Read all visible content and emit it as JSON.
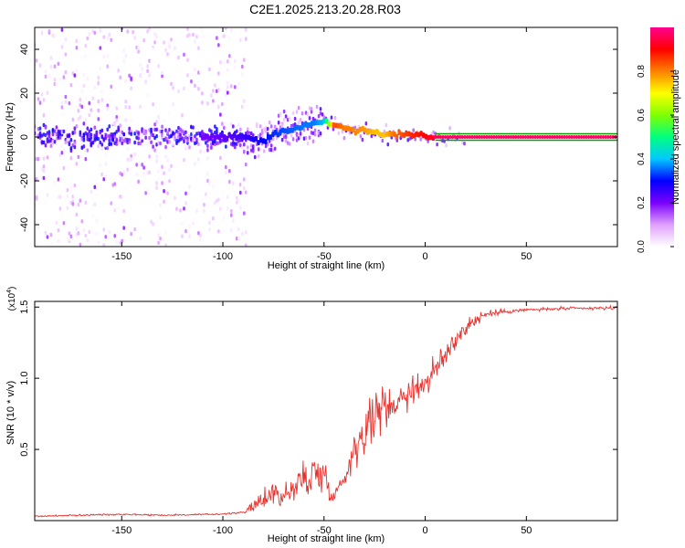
{
  "figure": {
    "title": "C2E1.2025.213.20.28.R03"
  },
  "colors": {
    "snr_line": "#e8322e",
    "ridge_line": "#00a000",
    "frame": "#000000"
  },
  "chart_data": [
    {
      "type": "heatmap",
      "xlabel": "Height of straight line (km)",
      "ylabel": "Frequency (Hz)",
      "xlim": [
        -193,
        95
      ],
      "ylim": [
        -50,
        50
      ],
      "xticks": [
        -150,
        -100,
        -50,
        0,
        50
      ],
      "yticks": [
        -40,
        -20,
        0,
        20,
        40
      ],
      "colorbar": {
        "label": "Normalized spectral amplitude",
        "range": [
          0,
          1
        ],
        "ticks": [
          "0.0",
          "0.2",
          "0.4",
          "0.6",
          "0.8"
        ],
        "tick_values": [
          0.0,
          0.2,
          0.4,
          0.6,
          0.8
        ],
        "colormap": [
          "#ffffff",
          "#e0a0ff",
          "#7a00ff",
          "#0000ff",
          "#00c8ff",
          "#00ff80",
          "#80ff00",
          "#ffff00",
          "#ff8000",
          "#ff0000",
          "#ff0090"
        ]
      },
      "noise_segments": [
        {
          "x_from": -193,
          "x_to": -88,
          "density": "dense",
          "freq_spread": 50
        },
        {
          "x_from": -88,
          "x_to": -50,
          "density": "moderate",
          "freq_spread": 12
        },
        {
          "x_from": -50,
          "x_to": 20,
          "density": "sparse",
          "freq_spread": 6
        }
      ],
      "ridge": {
        "x": [
          -110,
          -100,
          -90,
          -80,
          -75,
          -70,
          -65,
          -60,
          -55,
          -50,
          -45,
          -40,
          -35,
          -30,
          -25,
          -20,
          -15,
          -10,
          -5,
          0,
          5,
          10,
          95
        ],
        "y": [
          0,
          0,
          0,
          -2,
          1,
          3,
          4,
          5,
          6,
          7,
          5,
          4,
          3,
          3,
          2,
          1,
          1,
          1,
          1,
          0,
          0,
          0,
          0
        ],
        "amplitude": [
          0.2,
          0.22,
          0.25,
          0.3,
          0.32,
          0.34,
          0.35,
          0.36,
          0.36,
          0.4,
          0.85,
          0.8,
          0.8,
          0.78,
          0.75,
          0.75,
          0.82,
          0.85,
          0.88,
          0.9,
          0.95,
          0.97,
          0.97
        ]
      }
    },
    {
      "type": "line",
      "xlabel": "Height of straight line (km)",
      "ylabel": "SNR (10 * v/v)",
      "y_multiplier": "(x10",
      "y_multiplier_exp": "4",
      "xlim": [
        -193,
        95
      ],
      "ylim": [
        0,
        15400
      ],
      "xticks": [
        -150,
        -100,
        -50,
        0,
        50
      ],
      "yticks": [
        5000,
        10000,
        15000
      ],
      "ytick_labels": [
        "0.5",
        "1.0",
        "1.5"
      ],
      "series": [
        {
          "x": [
            -193,
            -170,
            -150,
            -130,
            -110,
            -95,
            -90,
            -85,
            -80,
            -75,
            -70,
            -65,
            -60,
            -55,
            -50,
            -45,
            -40,
            -35,
            -30,
            -25,
            -20,
            -15,
            -10,
            -5,
            0,
            5,
            10,
            15,
            20,
            25,
            30,
            40,
            50,
            60,
            70,
            80,
            95
          ],
          "values": [
            300,
            380,
            450,
            380,
            420,
            500,
            600,
            900,
            1600,
            2000,
            1700,
            2200,
            3000,
            3300,
            3200,
            1700,
            3000,
            5000,
            6500,
            7400,
            8000,
            8300,
            8900,
            9300,
            9700,
            10500,
            11600,
            12800,
            13600,
            14100,
            14500,
            14700,
            14800,
            14850,
            14900,
            14900,
            14950
          ],
          "noise_amplitude": [
            70,
            70,
            80,
            70,
            70,
            70,
            90,
            500,
            900,
            1200,
            1200,
            1300,
            1700,
            1900,
            1700,
            600,
            800,
            1600,
            2100,
            2100,
            1900,
            1700,
            1500,
            1400,
            1300,
            1300,
            1300,
            1100,
            900,
            600,
            350,
            200,
            150,
            150,
            150,
            150,
            150
          ]
        }
      ]
    }
  ]
}
